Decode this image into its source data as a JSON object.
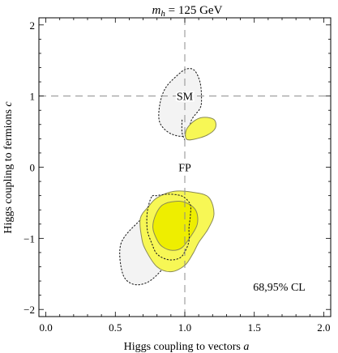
{
  "chart_data": {
    "type": "contour",
    "title": {
      "var": "m",
      "sub": "h",
      "rest": " = 125 GeV"
    },
    "xlabel": {
      "text": "Higgs coupling to vectors ",
      "var": "a"
    },
    "ylabel": {
      "text": "Higgs coupling to fermions ",
      "var": "c"
    },
    "xlim": [
      -0.05,
      2.05
    ],
    "ylim": [
      -2.1,
      2.1
    ],
    "xticks": [
      0.0,
      0.5,
      1.0,
      1.5,
      2.0
    ],
    "xtick_labels": [
      "0.0",
      "0.5",
      "1.0",
      "1.5",
      "2.0"
    ],
    "yticks": [
      -2,
      -1,
      0,
      1,
      2
    ],
    "ytick_labels": [
      "−2",
      "−1",
      "0",
      "1",
      "2"
    ],
    "grid": false,
    "reference_lines": {
      "x": 1.0,
      "y": 1.0
    },
    "annotations": [
      {
        "text": "SM",
        "x": 1.0,
        "y": 1.0
      },
      {
        "text": "FP",
        "x": 1.0,
        "y": 0.0
      },
      {
        "text": "68,95% CL",
        "x": 1.68,
        "y": -1.68
      }
    ],
    "regions": [
      {
        "level": "95% (dotted)",
        "style": "dotted",
        "fill": "#f3f3f3",
        "points": [
          [
            1.01,
            0.45
          ],
          [
            0.9,
            0.47
          ],
          [
            0.82,
            0.63
          ],
          [
            0.82,
            0.88
          ],
          [
            0.86,
            1.11
          ],
          [
            0.94,
            1.28
          ],
          [
            1.01,
            1.38
          ],
          [
            1.07,
            1.36
          ],
          [
            1.11,
            1.19
          ],
          [
            1.12,
            0.97
          ],
          [
            1.11,
            0.83
          ],
          [
            1.05,
            0.67
          ],
          [
            1.01,
            0.45
          ]
        ]
      },
      {
        "level": "95% (dotted)",
        "style": "dotted",
        "fill": "#f3f3f3",
        "points": [
          [
            0.54,
            -1.08
          ],
          [
            0.66,
            -0.78
          ],
          [
            0.81,
            -0.55
          ],
          [
            0.96,
            -0.46
          ],
          [
            1.03,
            -0.52
          ],
          [
            1.04,
            -0.65
          ],
          [
            1.0,
            -0.95
          ],
          [
            0.93,
            -1.17
          ],
          [
            0.84,
            -1.43
          ],
          [
            0.73,
            -1.62
          ],
          [
            0.62,
            -1.64
          ],
          [
            0.55,
            -1.48
          ],
          [
            0.54,
            -1.08
          ]
        ]
      },
      {
        "level": "95% (solid)",
        "style": "solid",
        "fill": "#f7f755",
        "points": [
          [
            1.01,
            0.4
          ],
          [
            1.01,
            0.52
          ],
          [
            1.06,
            0.64
          ],
          [
            1.13,
            0.7
          ],
          [
            1.21,
            0.67
          ],
          [
            1.22,
            0.55
          ],
          [
            1.16,
            0.45
          ],
          [
            1.06,
            0.39
          ],
          [
            1.01,
            0.4
          ]
        ]
      },
      {
        "level": "95% (solid)",
        "style": "solid",
        "fill": "#f7f755",
        "points": [
          [
            0.74,
            -0.55
          ],
          [
            0.68,
            -0.72
          ],
          [
            0.69,
            -1.0
          ],
          [
            0.72,
            -1.17
          ],
          [
            0.8,
            -1.4
          ],
          [
            0.9,
            -1.47
          ],
          [
            1.0,
            -1.38
          ],
          [
            1.06,
            -1.21
          ],
          [
            1.1,
            -1.06
          ],
          [
            1.17,
            -0.86
          ],
          [
            1.21,
            -0.65
          ],
          [
            1.17,
            -0.42
          ],
          [
            1.05,
            -0.35
          ],
          [
            0.92,
            -0.34
          ],
          [
            0.8,
            -0.43
          ],
          [
            0.74,
            -0.55
          ]
        ]
      },
      {
        "level": "68% (solid)",
        "style": "solid",
        "fill": "#eeee00",
        "points": [
          [
            0.84,
            -0.53
          ],
          [
            0.79,
            -0.67
          ],
          [
            0.77,
            -0.85
          ],
          [
            0.8,
            -1.02
          ],
          [
            0.84,
            -1.12
          ],
          [
            0.91,
            -1.17
          ],
          [
            0.98,
            -1.13
          ],
          [
            1.04,
            -0.98
          ],
          [
            1.09,
            -0.8
          ],
          [
            1.08,
            -0.61
          ],
          [
            1.01,
            -0.5
          ],
          [
            0.93,
            -0.48
          ],
          [
            0.84,
            -0.53
          ]
        ]
      },
      {
        "level": "95% (dotted)",
        "style": "dotted",
        "fill": "none",
        "points": [
          [
            0.76,
            -0.42
          ],
          [
            0.73,
            -0.63
          ],
          [
            0.73,
            -0.88
          ],
          [
            0.76,
            -1.06
          ],
          [
            0.8,
            -1.22
          ],
          [
            0.88,
            -1.3
          ],
          [
            0.96,
            -1.28
          ],
          [
            1.0,
            -1.19
          ],
          [
            1.03,
            -1.04
          ],
          [
            1.03,
            -0.86
          ],
          [
            1.04,
            -0.68
          ],
          [
            1.04,
            -0.53
          ],
          [
            1.0,
            -0.43
          ],
          [
            0.95,
            -0.39
          ],
          [
            0.87,
            -0.38
          ],
          [
            0.8,
            -0.4
          ],
          [
            0.76,
            -0.42
          ]
        ]
      },
      {
        "level": "95% (dotted)",
        "style": "dotted",
        "fill": "none",
        "points": [
          [
            1.0,
            0.38
          ],
          [
            0.98,
            0.49
          ],
          [
            0.98,
            0.67
          ]
        ]
      }
    ]
  }
}
